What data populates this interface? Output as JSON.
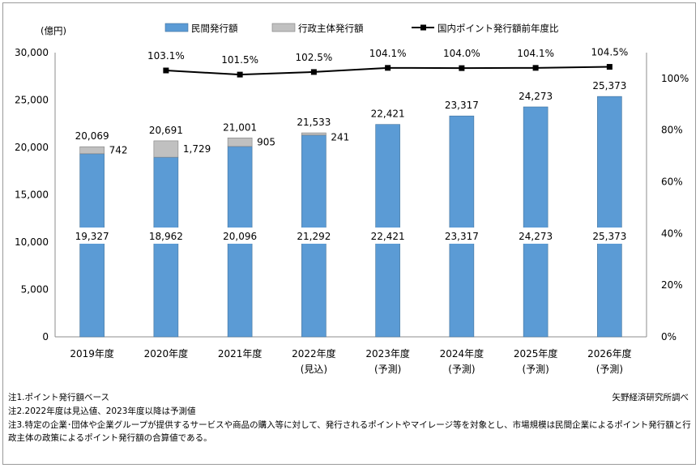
{
  "chart_data": {
    "type": "bar",
    "stacked": true,
    "categories": [
      "2019年度",
      "2020年度",
      "2021年度",
      "2022年度",
      "2023年度",
      "2024年度",
      "2025年度",
      "2026年度"
    ],
    "category_sublabels": [
      "",
      "",
      "",
      "(見込)",
      "(予測)",
      "(予測)",
      "(予測)",
      "(予測)"
    ],
    "ylabel": "(億円)",
    "ylim": [
      0,
      30000
    ],
    "yticks": [
      0,
      5000,
      10000,
      15000,
      20000,
      25000,
      30000
    ],
    "ytick_labels": [
      "0",
      "5,000",
      "10,000",
      "15,000",
      "20,000",
      "25,000",
      "30,000"
    ],
    "y2lim": [
      0,
      1.1
    ],
    "y2ticks": [
      0,
      0.2,
      0.4,
      0.6,
      0.8,
      1.0
    ],
    "y2tick_labels": [
      "0%",
      "20%",
      "40%",
      "60%",
      "80%",
      "100%"
    ],
    "series": [
      {
        "name": "民間発行額",
        "type": "bar",
        "color": "#5b9bd5",
        "values": [
          19327,
          18962,
          20096,
          21292,
          22421,
          23317,
          24273,
          25373
        ],
        "labels": [
          "19,327",
          "18,962",
          "20,096",
          "21,292",
          "22,421",
          "23,317",
          "24,273",
          "25,373"
        ]
      },
      {
        "name": "行政主体発行額",
        "type": "bar",
        "color": "#c0c0c0",
        "values": [
          742,
          1729,
          905,
          241,
          0,
          0,
          0,
          0
        ],
        "labels": [
          "742",
          "1,729",
          "905",
          "241",
          "",
          "",
          "",
          ""
        ]
      },
      {
        "name": "国内ポイント発行額前年度比",
        "type": "line",
        "color": "#000000",
        "axis": "right",
        "values": [
          null,
          1.031,
          1.015,
          1.025,
          1.041,
          1.04,
          1.041,
          1.045
        ],
        "labels": [
          "",
          "103.1%",
          "101.5%",
          "102.5%",
          "104.1%",
          "104.0%",
          "104.1%",
          "104.5%"
        ]
      }
    ],
    "totals": [
      20069,
      20691,
      21001,
      21533,
      22421,
      23317,
      24273,
      25373
    ],
    "total_labels": [
      "20,069",
      "20,691",
      "21,001",
      "21,533",
      "22,421",
      "23,317",
      "24,273",
      "25,373"
    ],
    "legend_position": "top",
    "grid": false
  },
  "notes": [
    "注1.ポイント発行額ベース",
    "注2.2022年度は見込値、2023年度以降は予測値",
    "注3.特定の企業･団体や企業グループが提供するサービスや商品の購入等に対して、発行されるポイントやマイレージ等を対象とし、市場規模は民間企業によるポイント発行額と行",
    "政主体の政策によるポイント発行額の合算値である。"
  ],
  "source": "矢野経済研究所調べ"
}
